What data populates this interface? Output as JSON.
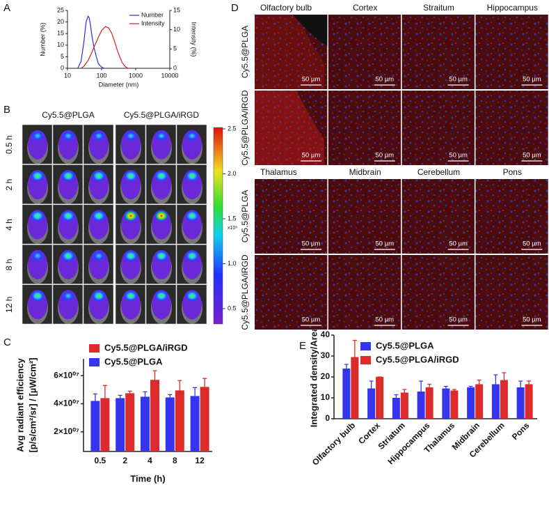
{
  "chart_data": [
    {
      "label": "A",
      "type": "line",
      "xlabel": "Diameter (nm)",
      "ylabel": "Number (%)",
      "y2label": "Intensity (%)",
      "xscale": "log",
      "xlim": [
        10,
        10000
      ],
      "xticks": [
        10,
        100,
        1000,
        10000
      ],
      "ylim": [
        0,
        25
      ],
      "yticks": [
        0,
        5,
        10,
        15,
        20,
        25
      ],
      "y2lim": [
        0,
        15
      ],
      "y2ticks": [
        0,
        5,
        10,
        15
      ],
      "legend": "upper right",
      "series": [
        {
          "name": "Number",
          "color": "#2a2ae0",
          "x": [
            20,
            25,
            30,
            35,
            40,
            43,
            47,
            52,
            60,
            70,
            80,
            100,
            120
          ],
          "values": [
            0,
            3,
            11,
            20,
            22.5,
            22,
            19,
            14,
            9,
            5,
            2,
            0.5,
            0
          ]
        },
        {
          "name": "Intensity",
          "color": "#d02020",
          "axis": "y2",
          "x": [
            25,
            30,
            40,
            50,
            60,
            80,
            100,
            130,
            160,
            200,
            250,
            300,
            400,
            500,
            600
          ],
          "values": [
            0,
            0.5,
            2,
            3.8,
            5.5,
            8,
            9.8,
            10.8,
            10.5,
            9,
            6.5,
            4.2,
            1.5,
            0.4,
            0
          ]
        }
      ]
    },
    {
      "label": "C",
      "type": "bar",
      "xlabel": "Time (h)",
      "ylabel": [
        "Avg radiant efficiency",
        "[p/s/cm²/sr] / [µW/cm²]"
      ],
      "categories": [
        "0.5",
        "2",
        "4",
        "8",
        "12"
      ],
      "ylim": [
        6000000,
        72000000
      ],
      "yticks": [
        {
          "value": 20000000,
          "label": "2×10⁰⁷"
        },
        {
          "value": 40000000,
          "label": "4×10⁰⁷"
        },
        {
          "value": 60000000,
          "label": "6×10⁰⁷"
        }
      ],
      "legend": "upper left",
      "series": [
        {
          "name": "Cy5.5@PLGA",
          "color": "#3535f0",
          "values": [
            42000000,
            44000000,
            45000000,
            44500000,
            45500000
          ],
          "errors": [
            5000000,
            2000000,
            3500000,
            2000000,
            6000000
          ]
        },
        {
          "name": "Cy5.5@PLGA/iRGD",
          "color": "#dd2a2a",
          "values": [
            44000000,
            47500000,
            57000000,
            49500000,
            52000000
          ],
          "errors": [
            9000000,
            1500000,
            6500000,
            7000000,
            6000000
          ]
        }
      ]
    },
    {
      "label": "E",
      "type": "bar",
      "ylabel": "Integrated density/Area",
      "categories": [
        "Olfactory bulb",
        "Cortex",
        "Striatum",
        "Hippocampus",
        "Thalamus",
        "Midbrain",
        "Cerebellum",
        "Pons"
      ],
      "ylim": [
        0,
        40
      ],
      "yticks": [
        0,
        10,
        20,
        30,
        40
      ],
      "legend": "upper left",
      "series": [
        {
          "name": "Cy5.5@PLGA",
          "color": "#3535f0",
          "values": [
            24,
            14.5,
            10,
            13,
            14.5,
            15,
            16.5,
            15
          ],
          "errors": [
            2,
            3.5,
            1.5,
            5,
            1,
            0.5,
            4.5,
            3
          ]
        },
        {
          "name": "Cy5.5@PLGA/iRGD",
          "color": "#dd2a2a",
          "values": [
            29.5,
            20,
            12.5,
            15,
            13.5,
            16.5,
            18.5,
            16.5
          ],
          "errors": [
            8,
            0,
            1.5,
            1.5,
            0.5,
            2,
            3.5,
            1.5
          ]
        }
      ]
    }
  ],
  "panels": {
    "B": {
      "label": "B",
      "groups": [
        "Cy5.5@PLGA",
        "Cy5.5@PLGA/iRGD"
      ],
      "rows": [
        "0.5 h",
        "2 h",
        "4 h",
        "8 h",
        "12 h"
      ],
      "colorbar": {
        "ticks": [
          "2.5",
          "2.0",
          "1.5",
          "1.0",
          "0.5"
        ],
        "unit": "x10⁸"
      }
    },
    "D": {
      "label": "D",
      "blocks": [
        {
          "regions": [
            "Olfactory bulb",
            "Cortex",
            "Straitum",
            "Hippocampus"
          ]
        },
        {
          "regions": [
            "Thalamus",
            "Midbrain",
            "Cerebellum",
            "Pons"
          ]
        }
      ],
      "rows": [
        "Cy5.5@PLGA",
        "Cy5.5@PLGA/iRGD"
      ],
      "scale_bar": "50 µm"
    }
  }
}
